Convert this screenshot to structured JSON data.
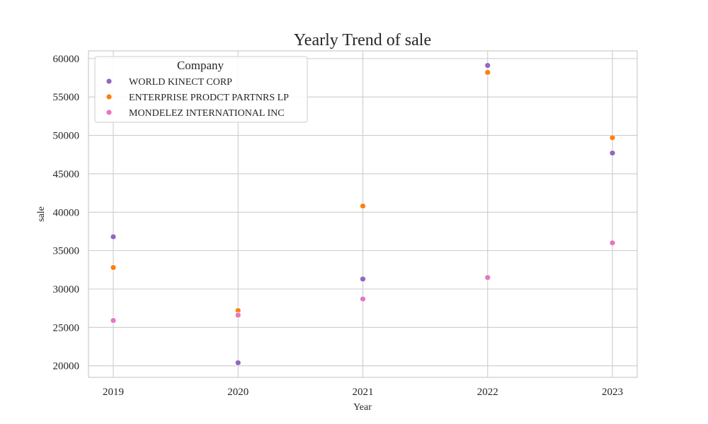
{
  "chart_data": {
    "type": "scatter",
    "title": "Yearly Trend of sale",
    "xlabel": "Year",
    "ylabel": "sale",
    "x": [
      "2019",
      "2020",
      "2021",
      "2022",
      "2023"
    ],
    "ylim": [
      18500,
      61000
    ],
    "yticks": [
      20000,
      25000,
      30000,
      35000,
      40000,
      45000,
      50000,
      55000,
      60000
    ],
    "grid": true,
    "legend": {
      "title": "Company",
      "placement": "top-left"
    },
    "series": [
      {
        "name": "WORLD KINECT CORP",
        "color": "#9467bd",
        "values": [
          36800,
          20400,
          31300,
          59100,
          47700
        ]
      },
      {
        "name": "ENTERPRISE PRODCT PARTNRS LP",
        "color": "#ff7f0e",
        "values": [
          32800,
          27200,
          40800,
          58200,
          49700
        ]
      },
      {
        "name": "MONDELEZ INTERNATIONAL INC",
        "color": "#e377c2",
        "values": [
          25900,
          26600,
          28700,
          31500,
          36000
        ]
      }
    ]
  }
}
